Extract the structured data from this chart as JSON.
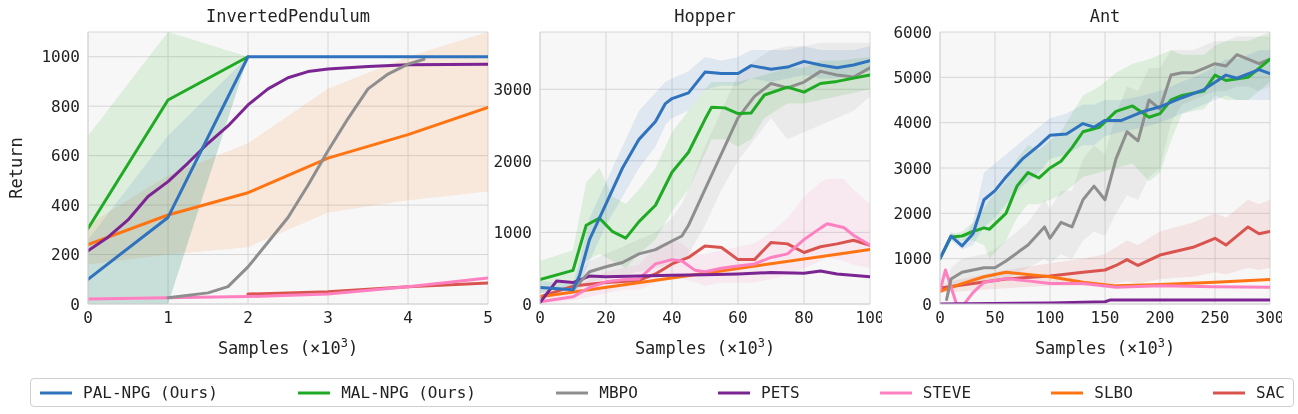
{
  "chart_data": [
    {
      "type": "line",
      "title": "InvertedPendulum",
      "xlabel": "Samples (×10$^{3}$)",
      "ylabel": "Return",
      "xlim": [
        0,
        5
      ],
      "xticks": [
        0,
        1,
        2,
        3,
        4,
        5
      ],
      "ylim": [
        0,
        1100
      ],
      "yticks": [
        0,
        200,
        400,
        600,
        800,
        1000
      ],
      "grid": true,
      "marker": "none",
      "legend": "bottom",
      "series": [
        {
          "name": "PAL-NPG (Ours)",
          "color": "#2f72bd",
          "x": [
            0,
            1,
            2,
            3,
            4,
            5
          ],
          "values": [
            100,
            350,
            1000,
            1000,
            1000,
            1000
          ],
          "lower": [
            0,
            0,
            1000,
            1000,
            1000,
            1000
          ],
          "upper": [
            260,
            680,
            1000,
            1000,
            1000,
            1000
          ]
        },
        {
          "name": "MAL-NPG (Ours)",
          "color": "#1faa23",
          "x": [
            0,
            1,
            2
          ],
          "values": [
            305,
            825,
            1000
          ],
          "lower": [
            0,
            0,
            1000
          ],
          "upper": [
            680,
            1100,
            1000
          ]
        },
        {
          "name": "MBPO",
          "color": "#8e8e8e",
          "x": [
            1,
            1.5,
            1.75,
            2,
            2.25,
            2.5,
            2.75,
            3,
            3.25,
            3.5,
            3.75,
            4,
            4.2
          ],
          "values": [
            25,
            45,
            70,
            150,
            250,
            350,
            480,
            620,
            750,
            870,
            930,
            970,
            990
          ]
        },
        {
          "name": "PETS",
          "color": "#7b2593",
          "x": [
            0,
            0.25,
            0.5,
            0.75,
            1,
            1.25,
            1.5,
            1.75,
            2,
            2.25,
            2.5,
            2.75,
            3,
            3.5,
            4,
            5
          ],
          "values": [
            215,
            270,
            340,
            435,
            495,
            570,
            650,
            720,
            805,
            870,
            915,
            940,
            950,
            960,
            968,
            970
          ]
        },
        {
          "name": "STEVE",
          "color": "#ff80c0",
          "x": [
            0,
            1,
            2,
            3,
            4,
            5
          ],
          "values": [
            20,
            25,
            30,
            40,
            70,
            105
          ]
        },
        {
          "name": "SLBO",
          "color": "#ff7412",
          "x": [
            0,
            1,
            2,
            3,
            4,
            5
          ],
          "values": [
            240,
            360,
            450,
            590,
            685,
            795
          ],
          "lower": [
            160,
            200,
            230,
            370,
            420,
            455
          ],
          "upper": [
            320,
            520,
            650,
            870,
            1000,
            1100
          ]
        },
        {
          "name": "SAC",
          "color": "#d9534f",
          "x": [
            2,
            3,
            4,
            5
          ],
          "values": [
            40,
            50,
            70,
            85
          ]
        }
      ]
    },
    {
      "type": "line",
      "title": "Hopper",
      "xlabel": "Samples (×10$^{3}$)",
      "xlim": [
        0,
        100
      ],
      "xticks": [
        0,
        20,
        40,
        60,
        80,
        100
      ],
      "ylim": [
        0,
        3800
      ],
      "yticks": [
        0,
        1000,
        2000,
        3000
      ],
      "grid": true,
      "marker": "none",
      "series": [
        {
          "color": "#2f72bd",
          "x": [
            0,
            10,
            12,
            15,
            20,
            25,
            30,
            35,
            38,
            40,
            45,
            50,
            55,
            60,
            64,
            70,
            75,
            80,
            85,
            90,
            95,
            100
          ],
          "values": [
            230,
            200,
            400,
            900,
            1400,
            1900,
            2300,
            2550,
            2800,
            2870,
            2950,
            3240,
            3220,
            3220,
            3330,
            3280,
            3310,
            3390,
            3340,
            3300,
            3340,
            3400
          ],
          "lower": [
            150,
            150,
            250,
            600,
            1100,
            1500,
            1900,
            2200,
            2500,
            2600,
            2700,
            3000,
            3050,
            3050,
            3150,
            3100,
            3150,
            3200,
            3150,
            3150,
            3200,
            3250
          ],
          "upper": [
            320,
            280,
            600,
            1200,
            1700,
            2200,
            2700,
            2950,
            3100,
            3150,
            3250,
            3450,
            3400,
            3450,
            3550,
            3550,
            3550,
            3600,
            3550,
            3550,
            3550,
            3600
          ]
        },
        {
          "color": "#1faa23",
          "x": [
            0,
            10,
            14,
            18,
            22,
            26,
            30,
            35,
            40,
            45,
            50,
            52,
            56,
            60,
            64,
            68,
            75,
            80,
            85,
            90,
            100
          ],
          "values": [
            340,
            470,
            1100,
            1200,
            1010,
            920,
            1150,
            1380,
            1840,
            2120,
            2580,
            2750,
            2740,
            2660,
            2670,
            2920,
            3030,
            2960,
            3080,
            3110,
            3200
          ],
          "lower": [
            150,
            250,
            600,
            700,
            600,
            500,
            700,
            900,
            1300,
            1600,
            2100,
            2300,
            2300,
            2200,
            2300,
            2600,
            2800,
            2800,
            2850,
            2900,
            3000
          ],
          "upper": [
            600,
            750,
            1700,
            1900,
            1500,
            1400,
            1600,
            1900,
            2400,
            2700,
            3000,
            3100,
            3100,
            3100,
            3150,
            3200,
            3300,
            3300,
            3400,
            3400,
            3450
          ]
        },
        {
          "color": "#8e8e8e",
          "x": [
            10,
            15,
            20,
            25,
            30,
            35,
            40,
            43,
            45,
            50,
            55,
            60,
            65,
            70,
            75,
            80,
            85,
            90,
            95,
            100
          ],
          "values": [
            200,
            450,
            520,
            580,
            700,
            760,
            880,
            950,
            1100,
            1600,
            2100,
            2600,
            2900,
            3080,
            3020,
            3100,
            3250,
            3200,
            3170,
            3300
          ],
          "lower": [
            150,
            300,
            350,
            400,
            450,
            500,
            550,
            600,
            700,
            1100,
            1600,
            2000,
            2300,
            2600,
            2300,
            2400,
            2500,
            2600,
            2700,
            2900
          ],
          "upper": [
            300,
            600,
            700,
            800,
            900,
            1000,
            1200,
            1400,
            1600,
            2200,
            2700,
            3200,
            3400,
            3550,
            3600,
            3600,
            3650,
            3650,
            3650,
            3650
          ]
        },
        {
          "color": "#7b2593",
          "x": [
            0,
            5,
            10,
            15,
            20,
            30,
            40,
            50,
            60,
            70,
            80,
            85,
            90,
            100
          ],
          "values": [
            20,
            320,
            300,
            390,
            380,
            390,
            400,
            410,
            420,
            440,
            430,
            460,
            420,
            380
          ]
        },
        {
          "color": "#ff80c0",
          "x": [
            0,
            10,
            15,
            20,
            25,
            30,
            35,
            40,
            43,
            47,
            50,
            55,
            60,
            65,
            70,
            75,
            80,
            85,
            87,
            92,
            95,
            100
          ],
          "values": [
            30,
            100,
            230,
            310,
            340,
            350,
            560,
            620,
            600,
            470,
            450,
            500,
            530,
            560,
            650,
            700,
            900,
            1060,
            1120,
            1070,
            960,
            820
          ],
          "lower": [
            0,
            50,
            100,
            150,
            200,
            200,
            300,
            350,
            350,
            300,
            250,
            300,
            300,
            300,
            350,
            400,
            500,
            600,
            650,
            600,
            550,
            500
          ],
          "upper": [
            80,
            200,
            350,
            450,
            500,
            550,
            800,
            900,
            850,
            700,
            700,
            750,
            800,
            850,
            1000,
            1200,
            1500,
            1700,
            1750,
            1750,
            1600,
            1400
          ]
        },
        {
          "color": "#ff7412",
          "x": [
            0,
            50,
            100
          ],
          "values": [
            100,
            430,
            760
          ]
        },
        {
          "color": "#d9534f",
          "x": [
            0,
            10,
            20,
            30,
            35,
            40,
            45,
            50,
            55,
            60,
            65,
            70,
            75,
            80,
            85,
            90,
            95,
            100
          ],
          "values": [
            100,
            250,
            300,
            330,
            420,
            560,
            650,
            810,
            790,
            620,
            620,
            860,
            840,
            720,
            800,
            840,
            890,
            820
          ]
        }
      ]
    },
    {
      "type": "line",
      "title": "Ant",
      "xlabel": "Samples (×10$^{3}$)",
      "xlim": [
        0,
        300
      ],
      "xticks": [
        0,
        50,
        100,
        150,
        200,
        250,
        300
      ],
      "ylim": [
        0,
        6000
      ],
      "yticks": [
        0,
        1000,
        2000,
        3000,
        4000,
        5000,
        6000
      ],
      "grid": true,
      "marker": "none",
      "series": [
        {
          "color": "#2f72bd",
          "x": [
            0,
            10,
            20,
            30,
            40,
            50,
            60,
            75,
            90,
            100,
            115,
            130,
            140,
            150,
            165,
            185,
            200,
            220,
            240,
            260,
            270,
            290,
            300
          ],
          "values": [
            1000,
            1500,
            1280,
            1550,
            2300,
            2500,
            2800,
            3200,
            3500,
            3720,
            3750,
            3980,
            3900,
            4050,
            4050,
            4250,
            4350,
            4550,
            4730,
            5050,
            4980,
            5170,
            5080
          ],
          "lower": [
            950,
            1400,
            1200,
            1300,
            1700,
            1900,
            2200,
            2600,
            2900,
            3200,
            3300,
            3500,
            3500,
            3700,
            3800,
            3900,
            4000,
            4200,
            4400,
            4600,
            4500,
            4500,
            4500
          ],
          "upper": [
            1050,
            1600,
            1400,
            1800,
            2900,
            3100,
            3300,
            3600,
            3900,
            4100,
            4200,
            4400,
            4400,
            4500,
            4500,
            4600,
            4700,
            4900,
            5100,
            5400,
            5400,
            5600,
            5600
          ]
        },
        {
          "color": "#1faa23",
          "x": [
            0,
            10,
            20,
            30,
            40,
            45,
            60,
            70,
            80,
            90,
            100,
            110,
            120,
            130,
            145,
            160,
            175,
            190,
            200,
            210,
            220,
            240,
            250,
            260,
            280,
            300
          ],
          "values": [
            1000,
            1480,
            1500,
            1600,
            1680,
            1650,
            2000,
            2600,
            2900,
            2780,
            3000,
            3150,
            3450,
            3800,
            3900,
            4250,
            4370,
            4120,
            4200,
            4500,
            4600,
            4700,
            5050,
            4930,
            5000,
            5400
          ],
          "lower": [
            950,
            1400,
            1400,
            1400,
            1300,
            1000,
            1400,
            1900,
            2200,
            2200,
            2300,
            2400,
            2600,
            2800,
            2900,
            3000,
            3100,
            2700,
            2900,
            3600,
            4200,
            4300,
            4600,
            4500,
            4500,
            4900
          ],
          "upper": [
            1050,
            1550,
            1600,
            1800,
            2100,
            2300,
            2700,
            3200,
            3500,
            3400,
            3600,
            3800,
            4200,
            4600,
            4800,
            5100,
            5300,
            5400,
            5500,
            5600,
            5500,
            5500,
            5700,
            5800,
            5800,
            6000
          ]
        },
        {
          "color": "#8e8e8e",
          "x": [
            6,
            10,
            20,
            40,
            50,
            60,
            80,
            95,
            100,
            110,
            120,
            130,
            140,
            150,
            160,
            170,
            180,
            190,
            200,
            210,
            220,
            230,
            240,
            250,
            260,
            270,
            280,
            290,
            300
          ],
          "values": [
            100,
            550,
            700,
            800,
            800,
            950,
            1300,
            1700,
            1450,
            1800,
            1700,
            2300,
            2600,
            2300,
            3200,
            3800,
            3600,
            4500,
            4300,
            5050,
            5100,
            5100,
            5200,
            5300,
            5250,
            5500,
            5400,
            5300,
            5400
          ],
          "lower": [
            0,
            300,
            400,
            500,
            500,
            550,
            800,
            1000,
            900,
            1100,
            1000,
            1400,
            1600,
            1500,
            2000,
            2400,
            2300,
            2800,
            3000,
            4000,
            4400,
            4500,
            4600,
            4700,
            4700,
            4800,
            4800,
            4700,
            4800
          ],
          "upper": [
            300,
            800,
            1000,
            1100,
            1200,
            1400,
            1800,
            2300,
            2100,
            2500,
            2500,
            3200,
            3500,
            3300,
            4200,
            4800,
            4700,
            5200,
            5200,
            5600,
            5600,
            5600,
            5700,
            5800,
            5800,
            5900,
            5900,
            5900,
            5900
          ]
        },
        {
          "color": "#7b2593",
          "x": [
            0,
            100,
            150,
            155,
            300
          ],
          "values": [
            0,
            20,
            50,
            90,
            90
          ]
        },
        {
          "color": "#ff80c0",
          "x": [
            0,
            5,
            15,
            22,
            30,
            40,
            60,
            80,
            100,
            130,
            160,
            200,
            250,
            300
          ],
          "values": [
            300,
            750,
            0,
            0,
            250,
            480,
            560,
            510,
            450,
            450,
            370,
            400,
            380,
            370
          ]
        },
        {
          "color": "#ff7412",
          "x": [
            0,
            20,
            40,
            60,
            100,
            130,
            160,
            200,
            250,
            300
          ],
          "values": [
            280,
            450,
            600,
            700,
            600,
            480,
            400,
            430,
            480,
            540
          ]
        },
        {
          "color": "#d9534f",
          "x": [
            0,
            30,
            60,
            100,
            130,
            150,
            160,
            170,
            180,
            200,
            230,
            250,
            260,
            280,
            290,
            300
          ],
          "values": [
            350,
            450,
            550,
            620,
            700,
            750,
            850,
            980,
            850,
            1080,
            1250,
            1450,
            1300,
            1700,
            1550,
            1600
          ],
          "lower": [
            250,
            300,
            350,
            400,
            400,
            400,
            450,
            500,
            450,
            550,
            600,
            700,
            650,
            800,
            750,
            800
          ],
          "upper": [
            450,
            600,
            750,
            900,
            1000,
            1100,
            1250,
            1400,
            1300,
            1600,
            1800,
            2000,
            1900,
            2300,
            2200,
            2300
          ]
        }
      ]
    }
  ]
}
